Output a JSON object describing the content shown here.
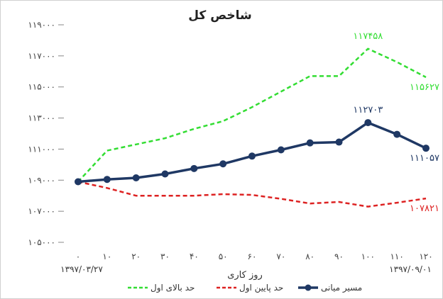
{
  "chart_data": {
    "type": "line",
    "title": "شاخص کل",
    "xlabel": "روز کاری",
    "ylabel": "",
    "x": [
      "۰",
      "۱۰",
      "۲۰",
      "۳۰",
      "۴۰",
      "۵۰",
      "۶۰",
      "۷۰",
      "۸۰",
      "۹۰",
      "۱۰۰",
      "۱۱۰",
      "۱۲۰"
    ],
    "ylim": [
      105000,
      119000
    ],
    "yticks": [
      "۱۰۵۰۰۰",
      "۱۰۷۰۰۰",
      "۱۰۹۰۰۰",
      "۱۱۱۰۰۰",
      "۱۱۳۰۰۰",
      "۱۱۵۰۰۰",
      "۱۱۷۰۰۰",
      "۱۱۹۰۰۰"
    ],
    "ytick_values": [
      105000,
      107000,
      109000,
      111000,
      113000,
      115000,
      117000,
      119000
    ],
    "start_date": "۱۳۹۷/۰۳/۲۷",
    "end_date": "۱۳۹۷/۰۹/۰۱",
    "series": [
      {
        "name": "حد بالای اول",
        "color": "#33dd33",
        "style": "dashed",
        "values": [
          108900,
          110900,
          111300,
          111700,
          112300,
          112800,
          113700,
          114700,
          115700,
          115700,
          117458,
          116600,
          115627
        ],
        "end_label": "۱۱۵۶۲۷",
        "peak_label": "۱۱۷۴۵۸"
      },
      {
        "name": "حد پایین اول",
        "color": "#dd2222",
        "style": "dashed",
        "values": [
          108900,
          108500,
          108000,
          108000,
          108000,
          108100,
          108050,
          107800,
          107500,
          107600,
          107300,
          107550,
          107821
        ],
        "end_label": "۱۰۷۸۲۱"
      },
      {
        "name": "مسیر میانی",
        "color": "#1f3864",
        "style": "solid-markers",
        "values": [
          108900,
          109050,
          109150,
          109400,
          109750,
          110050,
          110550,
          110950,
          111400,
          111450,
          112703,
          111950,
          111057
        ],
        "end_label": "۱۱۱۰۵۷",
        "peak_label": "۱۱۲۷۰۳"
      }
    ],
    "legend_position": "bottom",
    "grid": false
  }
}
